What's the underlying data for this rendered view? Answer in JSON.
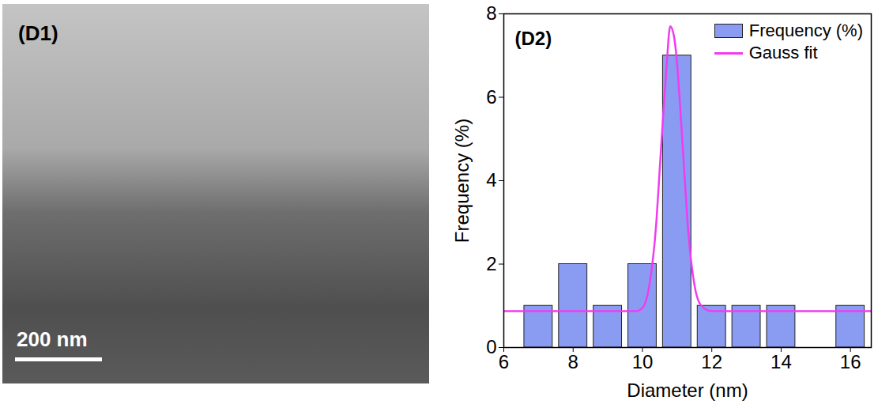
{
  "chart_data": {
    "type": "histogram",
    "title": "(D2)",
    "x_label": "Diameter (nm)",
    "y_label": "Frequency (%)",
    "bins": [
      6.5,
      7.5,
      8.5,
      9.5,
      10.5,
      11.5,
      12.5,
      13.5,
      14.5,
      15.5,
      16.5
    ],
    "series": [
      {
        "name": "Frequency (%)",
        "type": "bar",
        "color": "#8a9cf2",
        "values": [
          1,
          2,
          1,
          2,
          7,
          1,
          1,
          1,
          0,
          1
        ]
      },
      {
        "name": "Gauss fit",
        "type": "line",
        "color": "#f03cf0",
        "x": [
          6,
          9.8,
          10.0,
          10.2,
          10.4,
          10.5,
          10.6,
          10.7,
          10.8,
          10.9,
          11.0,
          11.1,
          11.2,
          11.3,
          11.5,
          11.7,
          12,
          16.6
        ],
        "values": [
          0.87,
          0.87,
          0.95,
          1.5,
          3.0,
          4.3,
          5.6,
          6.8,
          7.7,
          7.5,
          6.8,
          5.6,
          4.3,
          3.0,
          1.5,
          1.0,
          0.87,
          0.87
        ]
      }
    ],
    "xlim": [
      6,
      16.6
    ],
    "xticks": [
      6,
      8,
      10,
      12,
      14,
      16
    ],
    "ylim": [
      0,
      8
    ],
    "yticks": [
      0,
      2,
      4,
      6,
      8
    ],
    "grid": false,
    "legend": "top-right"
  },
  "image_panel": {
    "label": "(D1)",
    "scale_bar": "200 nm"
  }
}
